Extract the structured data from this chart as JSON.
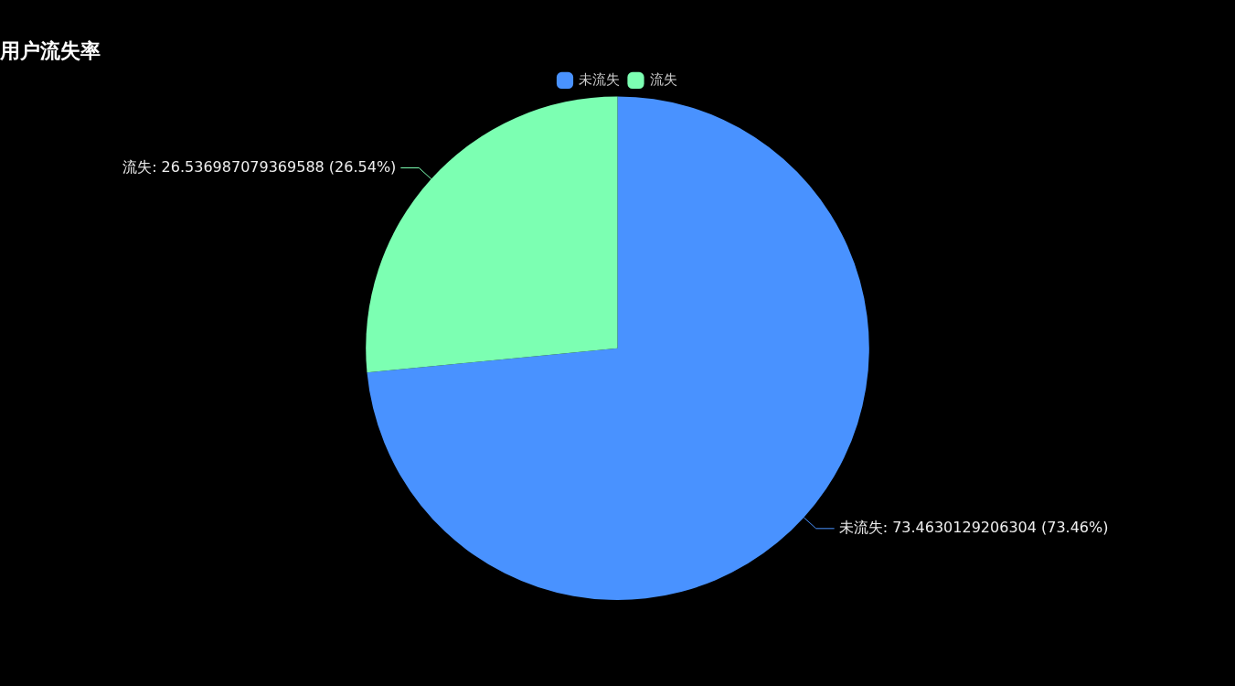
{
  "chart_data": {
    "type": "pie",
    "title": "用户流失率",
    "categories": [
      "未流失",
      "流失"
    ],
    "values": [
      73.4630129206304,
      26.536987079369588
    ],
    "colors": [
      "#4992ff",
      "#7cffb2"
    ],
    "value_labels": [
      "未流失: 73.4630129206304 (73.46%)",
      "流失: 26.536987079369588 (26.54%)"
    ],
    "legend": "top"
  }
}
